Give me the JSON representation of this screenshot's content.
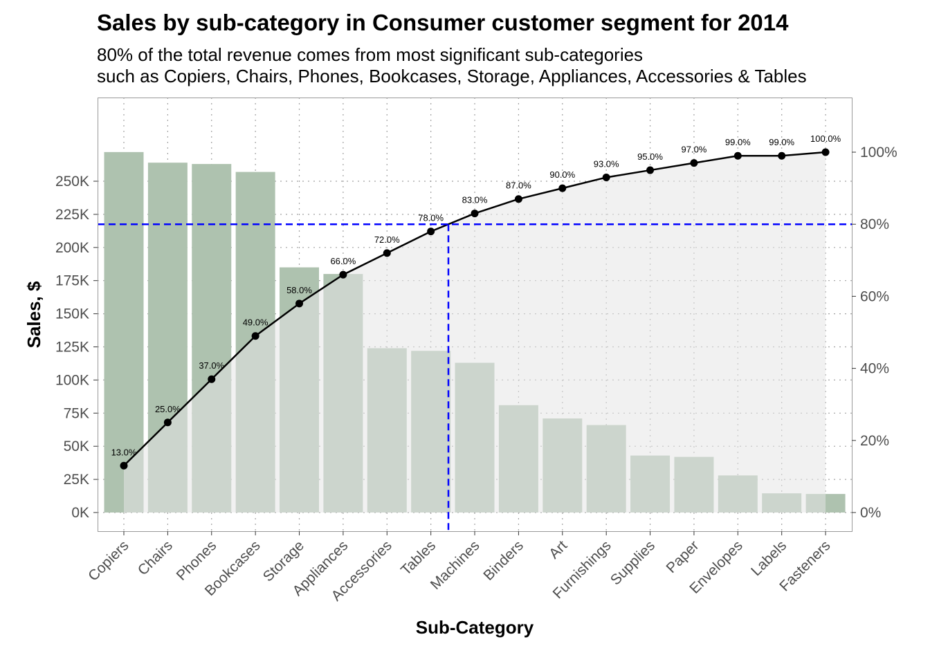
{
  "title": "Sales by sub-category in Consumer customer segment for 2014",
  "subtitle_line1": "80% of the total revenue comes from most significant sub-categories",
  "subtitle_line2": "such as Copiers, Chairs, Phones, Bookcases, Storage, Appliances, Accessories & Tables",
  "colors": {
    "bar": "#aec2af",
    "cumulative_area": "#e6e6e6",
    "cumulative_line": "#000000",
    "threshold_line": "#0000ff",
    "grid": "#a0a0a0",
    "panel_border": "#999999"
  },
  "chart_data": {
    "type": "bar",
    "xlabel": "Sub-Category",
    "ylabel": "Sales, $",
    "ylim": [
      0,
      250000
    ],
    "y_ticks": [
      "0K",
      "25K",
      "50K",
      "75K",
      "100K",
      "125K",
      "150K",
      "175K",
      "200K",
      "225K",
      "250K"
    ],
    "y2_ticks": [
      "0%",
      "20%",
      "40%",
      "60%",
      "80%",
      "100%"
    ],
    "categories": [
      "Copiers",
      "Chairs",
      "Phones",
      "Bookcases",
      "Storage",
      "Appliances",
      "Accessories",
      "Tables",
      "Machines",
      "Binders",
      "Art",
      "Furnishings",
      "Supplies",
      "Paper",
      "Envelopes",
      "Labels",
      "Fasteners"
    ],
    "series": [
      {
        "type": "bar",
        "values": [
          272000,
          264000,
          263000,
          257000,
          185000,
          180000,
          124000,
          122000,
          113000,
          81000,
          71000,
          66000,
          43000,
          42000,
          28000,
          14500,
          14000
        ]
      },
      {
        "type": "line",
        "axis": "secondary",
        "values": [
          13.0,
          25.0,
          37.0,
          49.0,
          58.0,
          66.0,
          72.0,
          78.0,
          83.0,
          87.0,
          90.0,
          93.0,
          95.0,
          97.0,
          99.0,
          99.0,
          100.0
        ],
        "labels": [
          "13.0%",
          "25.0%",
          "37.0%",
          "49.0%",
          "58.0%",
          "66.0%",
          "72.0%",
          "78.0%",
          "83.0%",
          "87.0%",
          "90.0%",
          "93.0%",
          "95.0%",
          "97.0%",
          "99.0%",
          "99.0%",
          "100.0%"
        ]
      }
    ],
    "threshold_pct": 80,
    "threshold_category_position": 7.4,
    "grid": true
  }
}
